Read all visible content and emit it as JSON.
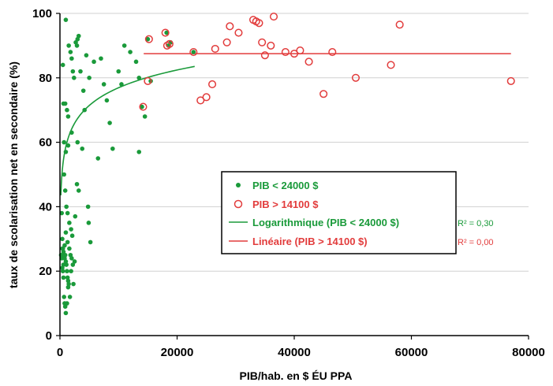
{
  "chart_data": {
    "type": "scatter",
    "xlabel": "PIB/hab. en $ ÉU PPA",
    "ylabel": "taux de scolarisation net en secondaire (%)",
    "xlim": [
      0,
      80000
    ],
    "ylim": [
      0,
      100
    ],
    "x_ticks": [
      "0",
      "20000",
      "40000",
      "60000",
      "80000"
    ],
    "y_ticks": [
      "0",
      "20",
      "40",
      "60",
      "80",
      "100"
    ],
    "grid": "horizontal",
    "legend_position": "center",
    "colors": {
      "low": "#1a9a3a",
      "high": "#e23c3c",
      "axis": "#000000",
      "grid": "#d0d0d0"
    },
    "legend": [
      {
        "label": "PIB < 24000 $",
        "kind": "dot",
        "color": "#1a9a3a"
      },
      {
        "label": "PIB > 14100 $",
        "kind": "ring",
        "color": "#e23c3c"
      },
      {
        "label": "Logarithmique (PIB < 24000 $)",
        "kind": "line",
        "color": "#1a9a3a"
      },
      {
        "label": "Linéaire (PIB > 14100 $)",
        "kind": "line",
        "color": "#e23c3c"
      }
    ],
    "annotations": [
      {
        "text": "R² = 0,30",
        "color": "#1a9a3a"
      },
      {
        "text": "R² = 0,00",
        "color": "#e23c3c"
      }
    ],
    "series": [
      {
        "name": "PIB < 24000 $",
        "marker": "dot",
        "points": [
          [
            500,
            84
          ],
          [
            600,
            72
          ],
          [
            900,
            72
          ],
          [
            1200,
            70
          ],
          [
            1400,
            68
          ],
          [
            1000,
            98
          ],
          [
            1500,
            90
          ],
          [
            1800,
            88
          ],
          [
            2000,
            86
          ],
          [
            2200,
            82
          ],
          [
            2400,
            80
          ],
          [
            2700,
            91
          ],
          [
            3000,
            92
          ],
          [
            3200,
            93
          ],
          [
            2900,
            90
          ],
          [
            3500,
            82
          ],
          [
            4000,
            76
          ],
          [
            4500,
            87
          ],
          [
            5000,
            80
          ],
          [
            4200,
            70
          ],
          [
            5800,
            85
          ],
          [
            6500,
            55
          ],
          [
            7000,
            86
          ],
          [
            7500,
            78
          ],
          [
            8000,
            73
          ],
          [
            8500,
            66
          ],
          [
            9000,
            58
          ],
          [
            10000,
            82
          ],
          [
            10500,
            78
          ],
          [
            11000,
            90
          ],
          [
            12000,
            88
          ],
          [
            13000,
            85
          ],
          [
            13500,
            80
          ],
          [
            13500,
            57
          ],
          [
            14000,
            71
          ],
          [
            14500,
            68
          ],
          [
            15500,
            79
          ],
          [
            700,
            50
          ],
          [
            900,
            45
          ],
          [
            1100,
            40
          ],
          [
            1300,
            38
          ],
          [
            1600,
            35
          ],
          [
            1900,
            33
          ],
          [
            2100,
            31
          ],
          [
            2600,
            37
          ],
          [
            2900,
            47
          ],
          [
            3200,
            45
          ],
          [
            4800,
            40
          ],
          [
            4900,
            35
          ],
          [
            5200,
            29
          ],
          [
            700,
            60
          ],
          [
            1000,
            57
          ],
          [
            1400,
            59
          ],
          [
            2000,
            63
          ],
          [
            3800,
            58
          ],
          [
            3000,
            60
          ],
          [
            300,
            38
          ],
          [
            400,
            30
          ],
          [
            500,
            27
          ],
          [
            600,
            26
          ],
          [
            700,
            25
          ],
          [
            800,
            24
          ],
          [
            900,
            25
          ],
          [
            1000,
            23
          ],
          [
            1100,
            22
          ],
          [
            1200,
            20
          ],
          [
            1300,
            18
          ],
          [
            1400,
            17
          ],
          [
            1500,
            16
          ],
          [
            1600,
            27
          ],
          [
            1800,
            25
          ],
          [
            2000,
            24
          ],
          [
            2200,
            22
          ],
          [
            200,
            25
          ],
          [
            300,
            24
          ],
          [
            400,
            21
          ],
          [
            500,
            20
          ],
          [
            600,
            18
          ],
          [
            700,
            12
          ],
          [
            800,
            10
          ],
          [
            900,
            9
          ],
          [
            1000,
            7
          ],
          [
            1200,
            10
          ],
          [
            1400,
            15
          ],
          [
            1700,
            12
          ],
          [
            1900,
            20
          ],
          [
            2300,
            16
          ],
          [
            2500,
            23
          ],
          [
            400,
            27
          ],
          [
            600,
            22
          ],
          [
            800,
            28
          ],
          [
            1000,
            32
          ],
          [
            1300,
            29
          ],
          [
            15000,
            92
          ],
          [
            18200,
            94
          ],
          [
            18500,
            90
          ],
          [
            18900,
            91
          ],
          [
            22800,
            88
          ]
        ]
      },
      {
        "name": "PIB > 14100 $",
        "marker": "ring",
        "points": [
          [
            15200,
            92
          ],
          [
            18000,
            94
          ],
          [
            18300,
            90
          ],
          [
            18700,
            90.5
          ],
          [
            22800,
            88
          ],
          [
            15000,
            79
          ],
          [
            14200,
            71
          ],
          [
            24000,
            73
          ],
          [
            25000,
            74
          ],
          [
            26000,
            78
          ],
          [
            26500,
            89
          ],
          [
            28500,
            91
          ],
          [
            29000,
            96
          ],
          [
            30500,
            94
          ],
          [
            33000,
            98
          ],
          [
            33500,
            97.5
          ],
          [
            34000,
            97
          ],
          [
            34500,
            91
          ],
          [
            35000,
            87
          ],
          [
            36000,
            90
          ],
          [
            36500,
            99
          ],
          [
            38500,
            88
          ],
          [
            40000,
            87.5
          ],
          [
            41000,
            88.5
          ],
          [
            42500,
            85
          ],
          [
            45000,
            75
          ],
          [
            46500,
            88
          ],
          [
            50500,
            80
          ],
          [
            56500,
            84
          ],
          [
            58000,
            96.5
          ],
          [
            77000,
            79
          ]
        ]
      }
    ],
    "trendlines": [
      {
        "name": "Logarithmique (PIB < 24000 $)",
        "type": "log",
        "x_range": [
          150,
          23000
        ],
        "a": 7.95,
        "b": 3.7
      },
      {
        "name": "Linéaire (PIB > 14100 $)",
        "type": "linear",
        "x_range": [
          14300,
          77000
        ],
        "slope": 0,
        "intercept": 87.5
      }
    ]
  }
}
